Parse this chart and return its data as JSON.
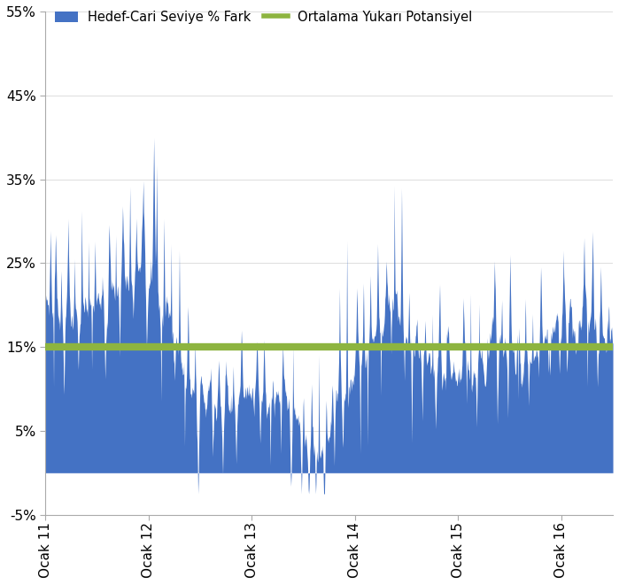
{
  "area_color": "#4472C4",
  "line_color": "#8DB440",
  "line_value": 0.15,
  "line_width": 6,
  "ylim": [
    -0.05,
    0.55
  ],
  "yticks": [
    -0.05,
    0.05,
    0.15,
    0.25,
    0.35,
    0.45,
    0.55
  ],
  "ytick_labels": [
    "-5%",
    "5%",
    "15%",
    "25%",
    "35%",
    "45%",
    "55%"
  ],
  "xtick_labels": [
    "Ocak 11",
    "Ocak 12",
    "Ocak 13",
    "Ocak 14",
    "Ocak 15",
    "Ocak 16"
  ],
  "legend_area_label": "Hedef-Cari Seviye % Fark",
  "legend_line_label": "Ortalama Yukarı Potansiyel",
  "background_color": "#FFFFFF",
  "spine_color": "#AAAAAA",
  "tick_positions": [
    0,
    1,
    2,
    3,
    4,
    5
  ],
  "xlim": [
    0,
    5.5
  ]
}
